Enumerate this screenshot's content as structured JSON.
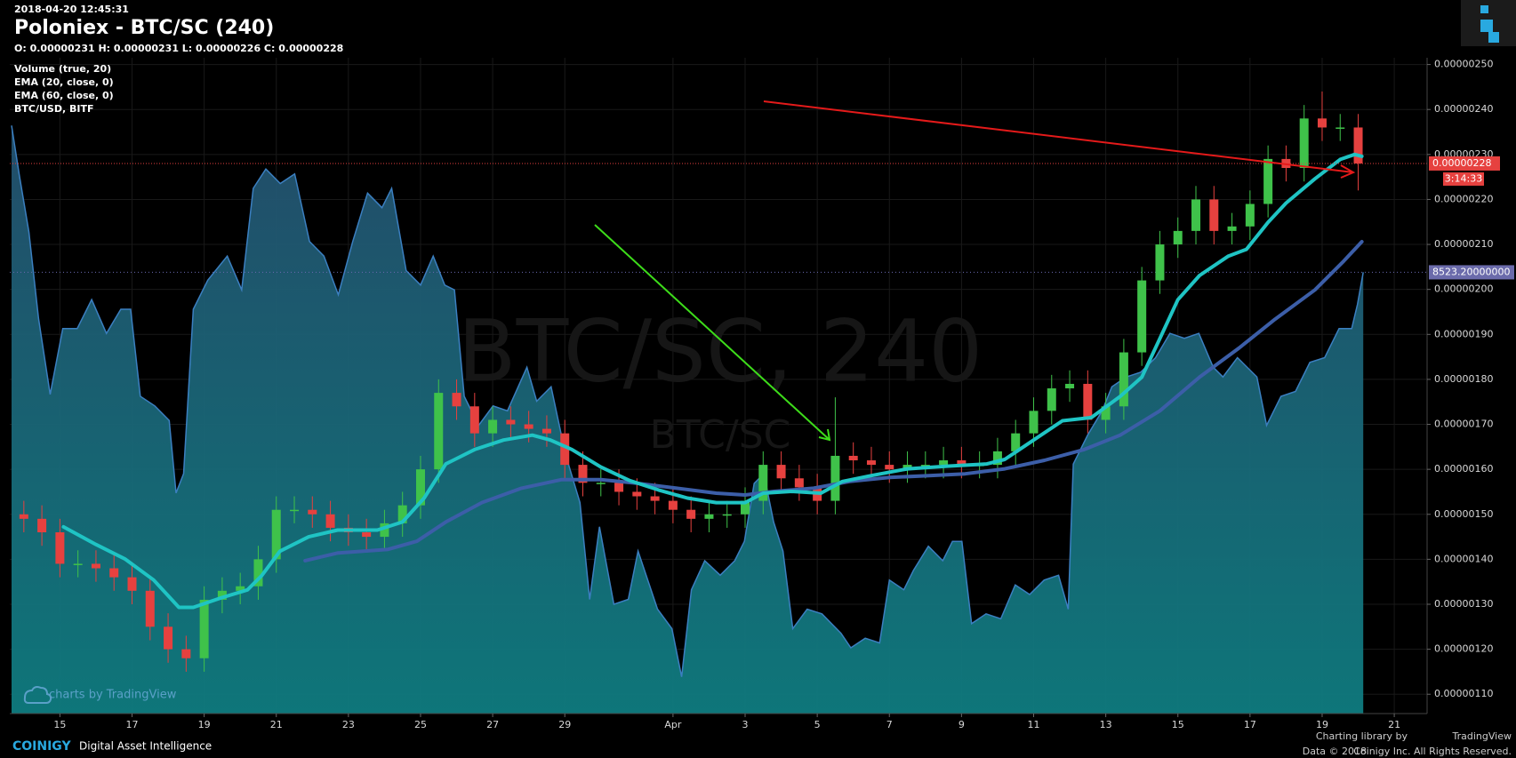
{
  "chart_data": {
    "type": "candlestick",
    "timestamp": "2018-04-20 12:45:31",
    "title": "Poloniex - BTC/SC (240)",
    "ohlc_text": "O: 0.00000231 H: 0.00000231 L: 0.00000226 C: 0.00000228",
    "volume_label": "Volume (true, 20)",
    "watermark": "BTC/SC, 240",
    "watermark_symbol": "BTC/SC",
    "up_color": "#3fc24a",
    "down_color": "#e6413f",
    "grid": true,
    "xlim": [
      -1.39,
      37.91
    ],
    "xticks": [
      {
        "value": 0,
        "label": "15"
      },
      {
        "value": 2,
        "label": "17"
      },
      {
        "value": 4,
        "label": "19"
      },
      {
        "value": 6,
        "label": "21"
      },
      {
        "value": 8,
        "label": "23"
      },
      {
        "value": 10,
        "label": "25"
      },
      {
        "value": 12,
        "label": "27"
      },
      {
        "value": 14,
        "label": "29"
      },
      {
        "value": 17,
        "label": "Apr"
      },
      {
        "value": 19,
        "label": "3"
      },
      {
        "value": 21,
        "label": "5"
      },
      {
        "value": 23,
        "label": "7"
      },
      {
        "value": 25,
        "label": "9"
      },
      {
        "value": 27,
        "label": "11"
      },
      {
        "value": 29,
        "label": "13"
      },
      {
        "value": 31,
        "label": "15"
      },
      {
        "value": 33,
        "label": "17"
      },
      {
        "value": 35,
        "label": "19"
      },
      {
        "value": 37,
        "label": "21"
      }
    ],
    "ylim": [
      1.057e-06,
      2.515e-06
    ],
    "yticks": [
      {
        "value": 2.5e-06,
        "label": "0.00000250"
      },
      {
        "value": 2.4e-06,
        "label": "0.00000240"
      },
      {
        "value": 2.3e-06,
        "label": "0.00000230"
      },
      {
        "value": 2.2e-06,
        "label": "0.00000220"
      },
      {
        "value": 2.1e-06,
        "label": "0.00000210"
      },
      {
        "value": 2e-06,
        "label": "0.00000200"
      },
      {
        "value": 1.9e-06,
        "label": "0.00000190"
      },
      {
        "value": 1.8e-06,
        "label": "0.00000180"
      },
      {
        "value": 1.7e-06,
        "label": "0.00000170"
      },
      {
        "value": 1.6e-06,
        "label": "0.00000160"
      },
      {
        "value": 1.5e-06,
        "label": "0.00000150"
      },
      {
        "value": 1.4e-06,
        "label": "0.00000140"
      },
      {
        "value": 1.3e-06,
        "label": "0.00000130"
      },
      {
        "value": 1.2e-06,
        "label": "0.00000120"
      },
      {
        "value": 1.1e-06,
        "label": "0.00000110"
      }
    ],
    "y2lim": [
      6000,
      9750
    ],
    "x": [
      -1,
      -0.5,
      0,
      0.5,
      1,
      1.5,
      2,
      2.5,
      3,
      3.5,
      4,
      4.5,
      5,
      5.5,
      6,
      6.5,
      7,
      7.5,
      8,
      8.5,
      9,
      9.5,
      10,
      10.5,
      11,
      11.5,
      12,
      12.5,
      13,
      13.5,
      14,
      14.5,
      15,
      15.5,
      16,
      16.5,
      17,
      17.5,
      18,
      18.5,
      19,
      19.5,
      20,
      20.5,
      21,
      21.5,
      22,
      22.5,
      23,
      23.5,
      24,
      24.5,
      25,
      25.5,
      26,
      26.5,
      27,
      27.5,
      28,
      28.5,
      29,
      29.5,
      30,
      30.5,
      31,
      31.5,
      32,
      32.5,
      33,
      33.5,
      34,
      34.5,
      35,
      35.5,
      36
    ],
    "open": [
      1.5e-06,
      1.49e-06,
      1.46e-06,
      1.39e-06,
      1.39e-06,
      1.38e-06,
      1.36e-06,
      1.33e-06,
      1.25e-06,
      1.2e-06,
      1.18e-06,
      1.31e-06,
      1.33e-06,
      1.34e-06,
      1.4e-06,
      1.51e-06,
      1.51e-06,
      1.5e-06,
      1.47e-06,
      1.46e-06,
      1.45e-06,
      1.48e-06,
      1.52e-06,
      1.6e-06,
      1.77e-06,
      1.74e-06,
      1.68e-06,
      1.71e-06,
      1.7e-06,
      1.69e-06,
      1.68e-06,
      1.61e-06,
      1.57e-06,
      1.57e-06,
      1.55e-06,
      1.54e-06,
      1.53e-06,
      1.51e-06,
      1.49e-06,
      1.5e-06,
      1.5e-06,
      1.53e-06,
      1.61e-06,
      1.58e-06,
      1.56e-06,
      1.53e-06,
      1.63e-06,
      1.62e-06,
      1.61e-06,
      1.6e-06,
      1.61e-06,
      1.61e-06,
      1.62e-06,
      1.61e-06,
      1.61e-06,
      1.64e-06,
      1.68e-06,
      1.73e-06,
      1.78e-06,
      1.79e-06,
      1.71e-06,
      1.74e-06,
      1.86e-06,
      2.02e-06,
      2.1e-06,
      2.13e-06,
      2.2e-06,
      2.13e-06,
      2.14e-06,
      2.19e-06,
      2.29e-06,
      2.27e-06,
      2.38e-06,
      2.36e-06,
      2.36e-06
    ],
    "high": [
      1.53e-06,
      1.52e-06,
      1.49e-06,
      1.42e-06,
      1.42e-06,
      1.41e-06,
      1.39e-06,
      1.36e-06,
      1.28e-06,
      1.23e-06,
      1.34e-06,
      1.36e-06,
      1.37e-06,
      1.43e-06,
      1.54e-06,
      1.54e-06,
      1.54e-06,
      1.53e-06,
      1.5e-06,
      1.49e-06,
      1.51e-06,
      1.55e-06,
      1.63e-06,
      1.8e-06,
      1.8e-06,
      1.77e-06,
      1.74e-06,
      1.74e-06,
      1.73e-06,
      1.72e-06,
      1.71e-06,
      1.64e-06,
      1.6e-06,
      1.6e-06,
      1.58e-06,
      1.57e-06,
      1.56e-06,
      1.54e-06,
      1.53e-06,
      1.53e-06,
      1.56e-06,
      1.64e-06,
      1.64e-06,
      1.61e-06,
      1.59e-06,
      1.76e-06,
      1.66e-06,
      1.65e-06,
      1.64e-06,
      1.64e-06,
      1.64e-06,
      1.65e-06,
      1.65e-06,
      1.64e-06,
      1.67e-06,
      1.71e-06,
      1.76e-06,
      1.81e-06,
      1.82e-06,
      1.82e-06,
      1.77e-06,
      1.89e-06,
      2.05e-06,
      2.13e-06,
      2.16e-06,
      2.23e-06,
      2.23e-06,
      2.17e-06,
      2.22e-06,
      2.32e-06,
      2.32e-06,
      2.41e-06,
      2.44e-06,
      2.39e-06,
      2.39e-06
    ],
    "low": [
      1.46e-06,
      1.43e-06,
      1.36e-06,
      1.36e-06,
      1.35e-06,
      1.33e-06,
      1.3e-06,
      1.22e-06,
      1.17e-06,
      1.15e-06,
      1.15e-06,
      1.28e-06,
      1.3e-06,
      1.31e-06,
      1.37e-06,
      1.48e-06,
      1.47e-06,
      1.44e-06,
      1.43e-06,
      1.42e-06,
      1.42e-06,
      1.45e-06,
      1.49e-06,
      1.57e-06,
      1.71e-06,
      1.65e-06,
      1.65e-06,
      1.67e-06,
      1.66e-06,
      1.65e-06,
      1.58e-06,
      1.54e-06,
      1.54e-06,
      1.52e-06,
      1.51e-06,
      1.5e-06,
      1.48e-06,
      1.46e-06,
      1.46e-06,
      1.47e-06,
      1.47e-06,
      1.5e-06,
      1.55e-06,
      1.53e-06,
      1.5e-06,
      1.5e-06,
      1.59e-06,
      1.58e-06,
      1.57e-06,
      1.57e-06,
      1.58e-06,
      1.58e-06,
      1.58e-06,
      1.58e-06,
      1.58e-06,
      1.61e-06,
      1.65e-06,
      1.7e-06,
      1.75e-06,
      1.68e-06,
      1.68e-06,
      1.71e-06,
      1.83e-06,
      1.99e-06,
      2.07e-06,
      2.1e-06,
      2.1e-06,
      2.1e-06,
      2.11e-06,
      2.16e-06,
      2.24e-06,
      2.24e-06,
      2.33e-06,
      2.33e-06,
      2.22e-06
    ],
    "close": [
      1.49e-06,
      1.46e-06,
      1.39e-06,
      1.39e-06,
      1.38e-06,
      1.36e-06,
      1.33e-06,
      1.25e-06,
      1.2e-06,
      1.18e-06,
      1.31e-06,
      1.33e-06,
      1.34e-06,
      1.4e-06,
      1.51e-06,
      1.51e-06,
      1.5e-06,
      1.47e-06,
      1.46e-06,
      1.45e-06,
      1.48e-06,
      1.52e-06,
      1.6e-06,
      1.77e-06,
      1.74e-06,
      1.68e-06,
      1.71e-06,
      1.7e-06,
      1.69e-06,
      1.68e-06,
      1.61e-06,
      1.57e-06,
      1.57e-06,
      1.55e-06,
      1.54e-06,
      1.53e-06,
      1.51e-06,
      1.49e-06,
      1.5e-06,
      1.5e-06,
      1.53e-06,
      1.61e-06,
      1.58e-06,
      1.56e-06,
      1.53e-06,
      1.63e-06,
      1.62e-06,
      1.61e-06,
      1.6e-06,
      1.61e-06,
      1.61e-06,
      1.62e-06,
      1.61e-06,
      1.61e-06,
      1.64e-06,
      1.68e-06,
      1.73e-06,
      1.78e-06,
      1.79e-06,
      1.71e-06,
      1.74e-06,
      1.86e-06,
      2.02e-06,
      2.1e-06,
      2.13e-06,
      2.2e-06,
      2.13e-06,
      2.14e-06,
      2.19e-06,
      2.29e-06,
      2.27e-06,
      2.38e-06,
      2.36e-06,
      2.36e-06,
      2.28e-06
    ],
    "last_price": {
      "value": 2.28e-06,
      "label": "0.00000228"
    },
    "countdown": "3:14:33",
    "series": [
      {
        "name": "EMA (20, close, 0)",
        "color": "#1fc4c4",
        "x": [
          0.1,
          1.0,
          1.8,
          2.6,
          3.3,
          3.7,
          4.5,
          5.2,
          5.6,
          6.1,
          6.9,
          7.7,
          8.8,
          9.5,
          10.1,
          10.7,
          11.5,
          12.3,
          13.1,
          13.6,
          14.2,
          15.0,
          15.8,
          16.6,
          17.4,
          18.2,
          19.0,
          19.5,
          20.3,
          21.1,
          21.7,
          22.5,
          23.5,
          24.6,
          25.7,
          26.2,
          27.0,
          27.8,
          28.6,
          29.4,
          30.0,
          30.5,
          31.0,
          31.6,
          32.4,
          32.9,
          33.5,
          34.0,
          34.8,
          35.5,
          35.9,
          36.1
        ],
        "values": [
          1.472e-06,
          1.433e-06,
          1.401e-06,
          1.354e-06,
          1.293e-06,
          1.293e-06,
          1.315e-06,
          1.332e-06,
          1.364e-06,
          1.418e-06,
          1.45e-06,
          1.465e-06,
          1.465e-06,
          1.483e-06,
          1.536e-06,
          1.612e-06,
          1.644e-06,
          1.665e-06,
          1.676e-06,
          1.665e-06,
          1.644e-06,
          1.605e-06,
          1.575e-06,
          1.554e-06,
          1.536e-06,
          1.526e-06,
          1.526e-06,
          1.547e-06,
          1.551e-06,
          1.547e-06,
          1.573e-06,
          1.586e-06,
          1.601e-06,
          1.607e-06,
          1.612e-06,
          1.622e-06,
          1.665e-06,
          1.708e-06,
          1.715e-06,
          1.762e-06,
          1.805e-06,
          1.891e-06,
          1.977e-06,
          2.031e-06,
          2.074e-06,
          2.089e-06,
          2.149e-06,
          2.192e-06,
          2.246e-06,
          2.289e-06,
          2.3e-06,
          2.296e-06
        ]
      },
      {
        "name": "EMA (60, close, 0)",
        "color": "#3c5ea8",
        "x": [
          6.8,
          7.7,
          9.1,
          9.9,
          10.7,
          11.7,
          12.8,
          13.9,
          15.0,
          16.0,
          17.1,
          18.2,
          19.0,
          19.8,
          20.9,
          21.9,
          23.0,
          24.1,
          25.1,
          26.2,
          27.3,
          28.4,
          29.4,
          30.5,
          31.6,
          32.7,
          33.7,
          34.8,
          35.6,
          36.1
        ],
        "values": [
          1.397e-06,
          1.414e-06,
          1.422e-06,
          1.44e-06,
          1.483e-06,
          1.526e-06,
          1.558e-06,
          1.577e-06,
          1.577e-06,
          1.569e-06,
          1.558e-06,
          1.547e-06,
          1.543e-06,
          1.551e-06,
          1.558e-06,
          1.573e-06,
          1.582e-06,
          1.586e-06,
          1.59e-06,
          1.601e-06,
          1.62e-06,
          1.644e-06,
          1.676e-06,
          1.73e-06,
          1.805e-06,
          1.87e-06,
          1.934e-06,
          1.999e-06,
          2.063e-06,
          2.106e-06
        ]
      },
      {
        "name": "BTC/USD, BITF",
        "color": "#3b7fc0",
        "axis": "y2",
        "last_label": "8523.20000000",
        "x": [
          -1.34,
          -1.13,
          -0.86,
          -0.59,
          -0.27,
          0.08,
          0.48,
          0.88,
          1.29,
          1.69,
          1.96,
          2.23,
          2.63,
          3.03,
          3.22,
          3.43,
          3.7,
          4.1,
          4.64,
          5.04,
          5.36,
          5.71,
          6.11,
          6.51,
          6.92,
          7.32,
          7.72,
          8.12,
          8.53,
          8.93,
          9.2,
          9.6,
          10.0,
          10.35,
          10.67,
          10.94,
          11.21,
          11.61,
          12.01,
          12.41,
          12.95,
          13.22,
          13.62,
          14.02,
          14.42,
          14.69,
          14.96,
          15.36,
          15.76,
          16.03,
          16.57,
          16.97,
          17.24,
          17.51,
          17.88,
          18.31,
          18.71,
          18.98,
          19.25,
          19.52,
          19.79,
          20.05,
          20.32,
          20.72,
          21.13,
          21.66,
          21.93,
          22.33,
          22.73,
          23.0,
          23.4,
          23.67,
          24.08,
          24.48,
          24.75,
          25.01,
          25.28,
          25.68,
          26.09,
          26.49,
          26.89,
          27.29,
          27.69,
          27.96,
          28.1,
          28.5,
          28.9,
          29.17,
          29.57,
          29.97,
          30.38,
          30.78,
          31.18,
          31.58,
          31.98,
          32.25,
          32.65,
          33.19,
          33.46,
          33.86,
          34.26,
          34.66,
          35.07,
          35.47,
          35.82,
          35.98,
          36.14
        ],
        "values": [
          9363,
          9086,
          8754,
          8257,
          7825,
          8201,
          8201,
          8367,
          8174,
          8312,
          8312,
          7814,
          7759,
          7676,
          7261,
          7372,
          8312,
          8478,
          8616,
          8423,
          9003,
          9114,
          9031,
          9086,
          8699,
          8616,
          8395,
          8699,
          8976,
          8893,
          9003,
          8533,
          8450,
          8616,
          8450,
          8423,
          7814,
          7648,
          7759,
          7731,
          7980,
          7786,
          7869,
          7482,
          7206,
          6653,
          7068,
          6625,
          6653,
          6929,
          6597,
          6486,
          6210,
          6708,
          6874,
          6791,
          6874,
          6985,
          7316,
          7372,
          7095,
          6929,
          6486,
          6597,
          6570,
          6459,
          6376,
          6431,
          6404,
          6763,
          6708,
          6819,
          6957,
          6874,
          6985,
          6985,
          6514,
          6570,
          6542,
          6736,
          6681,
          6763,
          6791,
          6597,
          7427,
          7593,
          7731,
          7869,
          7925,
          7952,
          8035,
          8174,
          8146,
          8174,
          7980,
          7925,
          8035,
          7925,
          7648,
          7814,
          7842,
          8008,
          8035,
          8201,
          8201,
          8340,
          8523.2
        ]
      }
    ],
    "tv_badge": "charts by TradingView",
    "footer": {
      "brand": "COINIGY",
      "tagline": "Digital Asset Intelligence",
      "library": "Charting library by",
      "library_name": "TradingView",
      "data": "Data © 2018",
      "rights": "Coinigy Inc. All Rights Reserved."
    }
  }
}
